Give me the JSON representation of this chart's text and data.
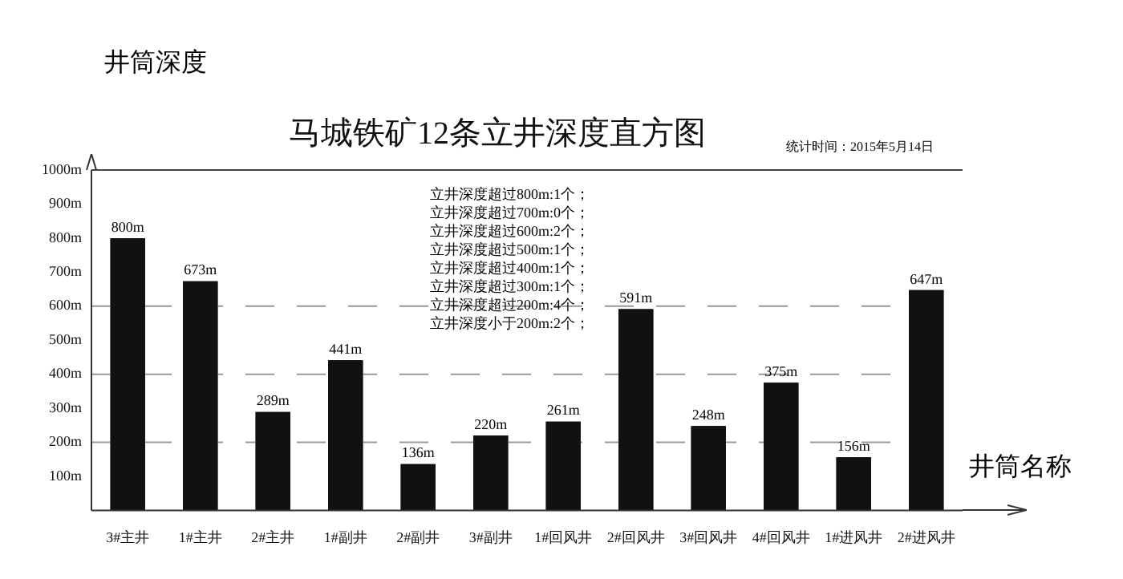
{
  "chart_data": {
    "type": "bar",
    "title": "马城铁矿12条立井深度直方图",
    "xlabel": "井筒名称",
    "ylabel": "井筒深度",
    "categories": [
      "3#主井",
      "1#主井",
      "2#主井",
      "1#副井",
      "2#副井",
      "3#副井",
      "1#回风井",
      "2#回风井",
      "3#回风井",
      "4#回风井",
      "1#进风井",
      "2#进风井"
    ],
    "values": [
      800,
      673,
      289,
      441,
      136,
      220,
      261,
      591,
      248,
      375,
      156,
      647
    ],
    "value_labels": [
      "800m",
      "673m",
      "289m",
      "441m",
      "136m",
      "220m",
      "261m",
      "591m",
      "248m",
      "375m",
      "156m",
      "647m"
    ],
    "color": "#111111",
    "ylim": [
      0,
      1000
    ],
    "yticks": [
      {
        "value": 100,
        "label": "100m"
      },
      {
        "value": 200,
        "label": "200m"
      },
      {
        "value": 300,
        "label": "300m"
      },
      {
        "value": 400,
        "label": "400m"
      },
      {
        "value": 500,
        "label": "500m"
      },
      {
        "value": 600,
        "label": "600m"
      },
      {
        "value": 700,
        "label": "700m"
      },
      {
        "value": 800,
        "label": "800m"
      },
      {
        "value": 900,
        "label": "900m"
      },
      {
        "value": 1000,
        "label": "1000m"
      }
    ],
    "grid": false,
    "legend": false,
    "ref_lines": [
      {
        "axis": "y",
        "value": 200,
        "line_style": "dashed",
        "color": "#999999"
      },
      {
        "axis": "y",
        "value": 400,
        "line_style": "dashed",
        "color": "#999999"
      },
      {
        "axis": "y",
        "value": 600,
        "line_style": "dashed",
        "color": "#999999"
      },
      {
        "axis": "y",
        "value": 1000,
        "line_style": "solid",
        "color": "#444444"
      }
    ],
    "annotations": [
      "统计时间：2015年5月14日",
      "立井深度超过800m:1个；",
      "立井深度超过700m:0个；",
      "立井深度超过600m:2个；",
      "立井深度超过500m:1个；",
      "立井深度超过400m:1个；",
      "立井深度超过300m:1个；",
      "立井深度超过200m:4个；",
      "立井深度小于200m:2个；"
    ]
  }
}
